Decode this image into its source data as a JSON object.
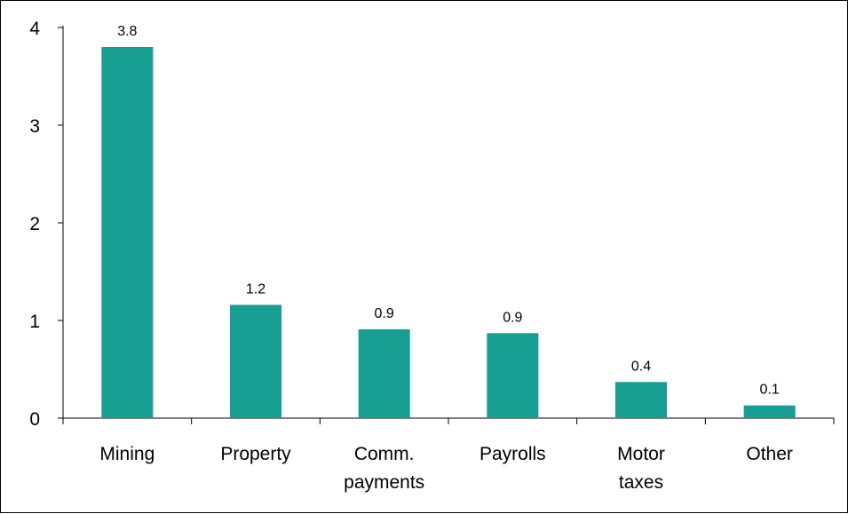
{
  "chart_data": {
    "type": "bar",
    "categories": [
      [
        "Mining"
      ],
      [
        "Property"
      ],
      [
        "Comm.",
        "payments"
      ],
      [
        "Payrolls"
      ],
      [
        "Motor",
        "taxes"
      ],
      [
        "Other"
      ]
    ],
    "values": [
      3.8,
      1.16,
      0.91,
      0.87,
      0.37,
      0.13
    ],
    "data_labels": [
      "3.8",
      "1.2",
      "0.9",
      "0.9",
      "0.4",
      "0.1"
    ],
    "y_ticks": [
      "0",
      "1",
      "2",
      "3",
      "4"
    ],
    "ylim": [
      0,
      4
    ],
    "title": "",
    "xlabel": "",
    "ylabel": "",
    "grid": false,
    "legend": "none",
    "bar_color": "#179e93"
  }
}
